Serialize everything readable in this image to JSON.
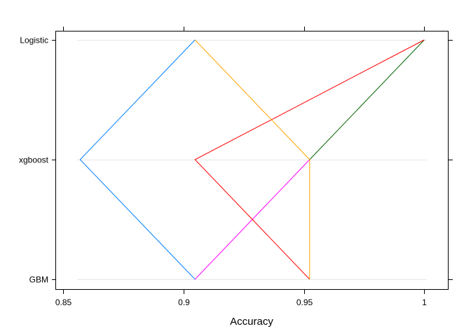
{
  "chart_data": {
    "type": "line",
    "orientation": "horizontal",
    "title": "",
    "xlabel": "Accuracy",
    "ylabel": "",
    "xlim": [
      0.8471,
      1.0101
    ],
    "x_ticks": [
      0.85,
      0.9,
      0.95,
      1.0
    ],
    "x_tick_labels": [
      "0.85",
      "0.9",
      "0.95",
      "1"
    ],
    "categories": [
      "Logistic",
      "xgboost",
      "GBM"
    ],
    "grid": "horizontal reference lines at each category",
    "legend": "none",
    "series": [
      {
        "color": "#0080ff",
        "values": [
          0.9048,
          0.8571,
          0.9048
        ]
      },
      {
        "color": "#ff00ff",
        "values": [
          null,
          0.9524,
          0.9048
        ]
      },
      {
        "color": "#006400",
        "values": [
          1.0,
          0.9524,
          null
        ]
      },
      {
        "color": "#ff0000",
        "values": [
          1.0,
          0.9048,
          0.9524
        ]
      },
      {
        "color": "#ffa500",
        "values": [
          0.9048,
          0.9524,
          0.9524
        ]
      }
    ]
  }
}
